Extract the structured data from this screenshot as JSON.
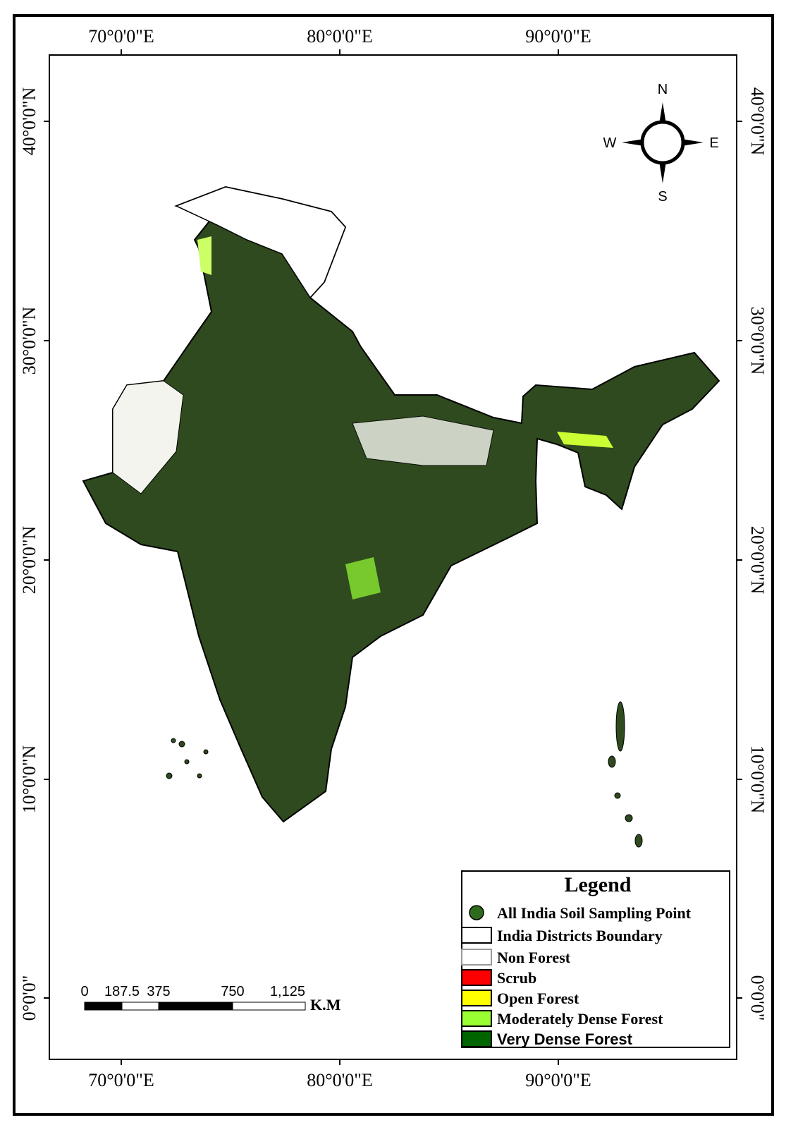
{
  "map": {
    "graticule": {
      "longitude": [
        "70°0'0\"E",
        "80°0'0\"E",
        "90°0'0\"E"
      ],
      "latitude": [
        "40°0'0\"N",
        "30°0'0\"N",
        "20°0'0\"N",
        "10°0'0\"N",
        "0°0'0\""
      ]
    },
    "compass": {
      "north": "N",
      "east": "E",
      "south": "S",
      "west": "W"
    },
    "legend": {
      "title": "Legend",
      "items": [
        {
          "label": "All India Soil Sampling Point",
          "color": "#2f6b1e"
        },
        {
          "label": "India Districts Boundary",
          "color": "#ffffff"
        },
        {
          "label": "Non Forest",
          "color": "#ffffff"
        },
        {
          "label": "Scrub",
          "color": "#ff0000"
        },
        {
          "label": "Open Forest",
          "color": "#ffff00"
        },
        {
          "label": "Moderately Dense Forest",
          "color": "#99ff33"
        },
        {
          "label": "Very Dense Forest",
          "color": "#006400"
        }
      ]
    },
    "scale_bar": {
      "labels": [
        "0",
        "187.5",
        "375",
        "750",
        "1,125"
      ],
      "unit": "K.M"
    }
  }
}
